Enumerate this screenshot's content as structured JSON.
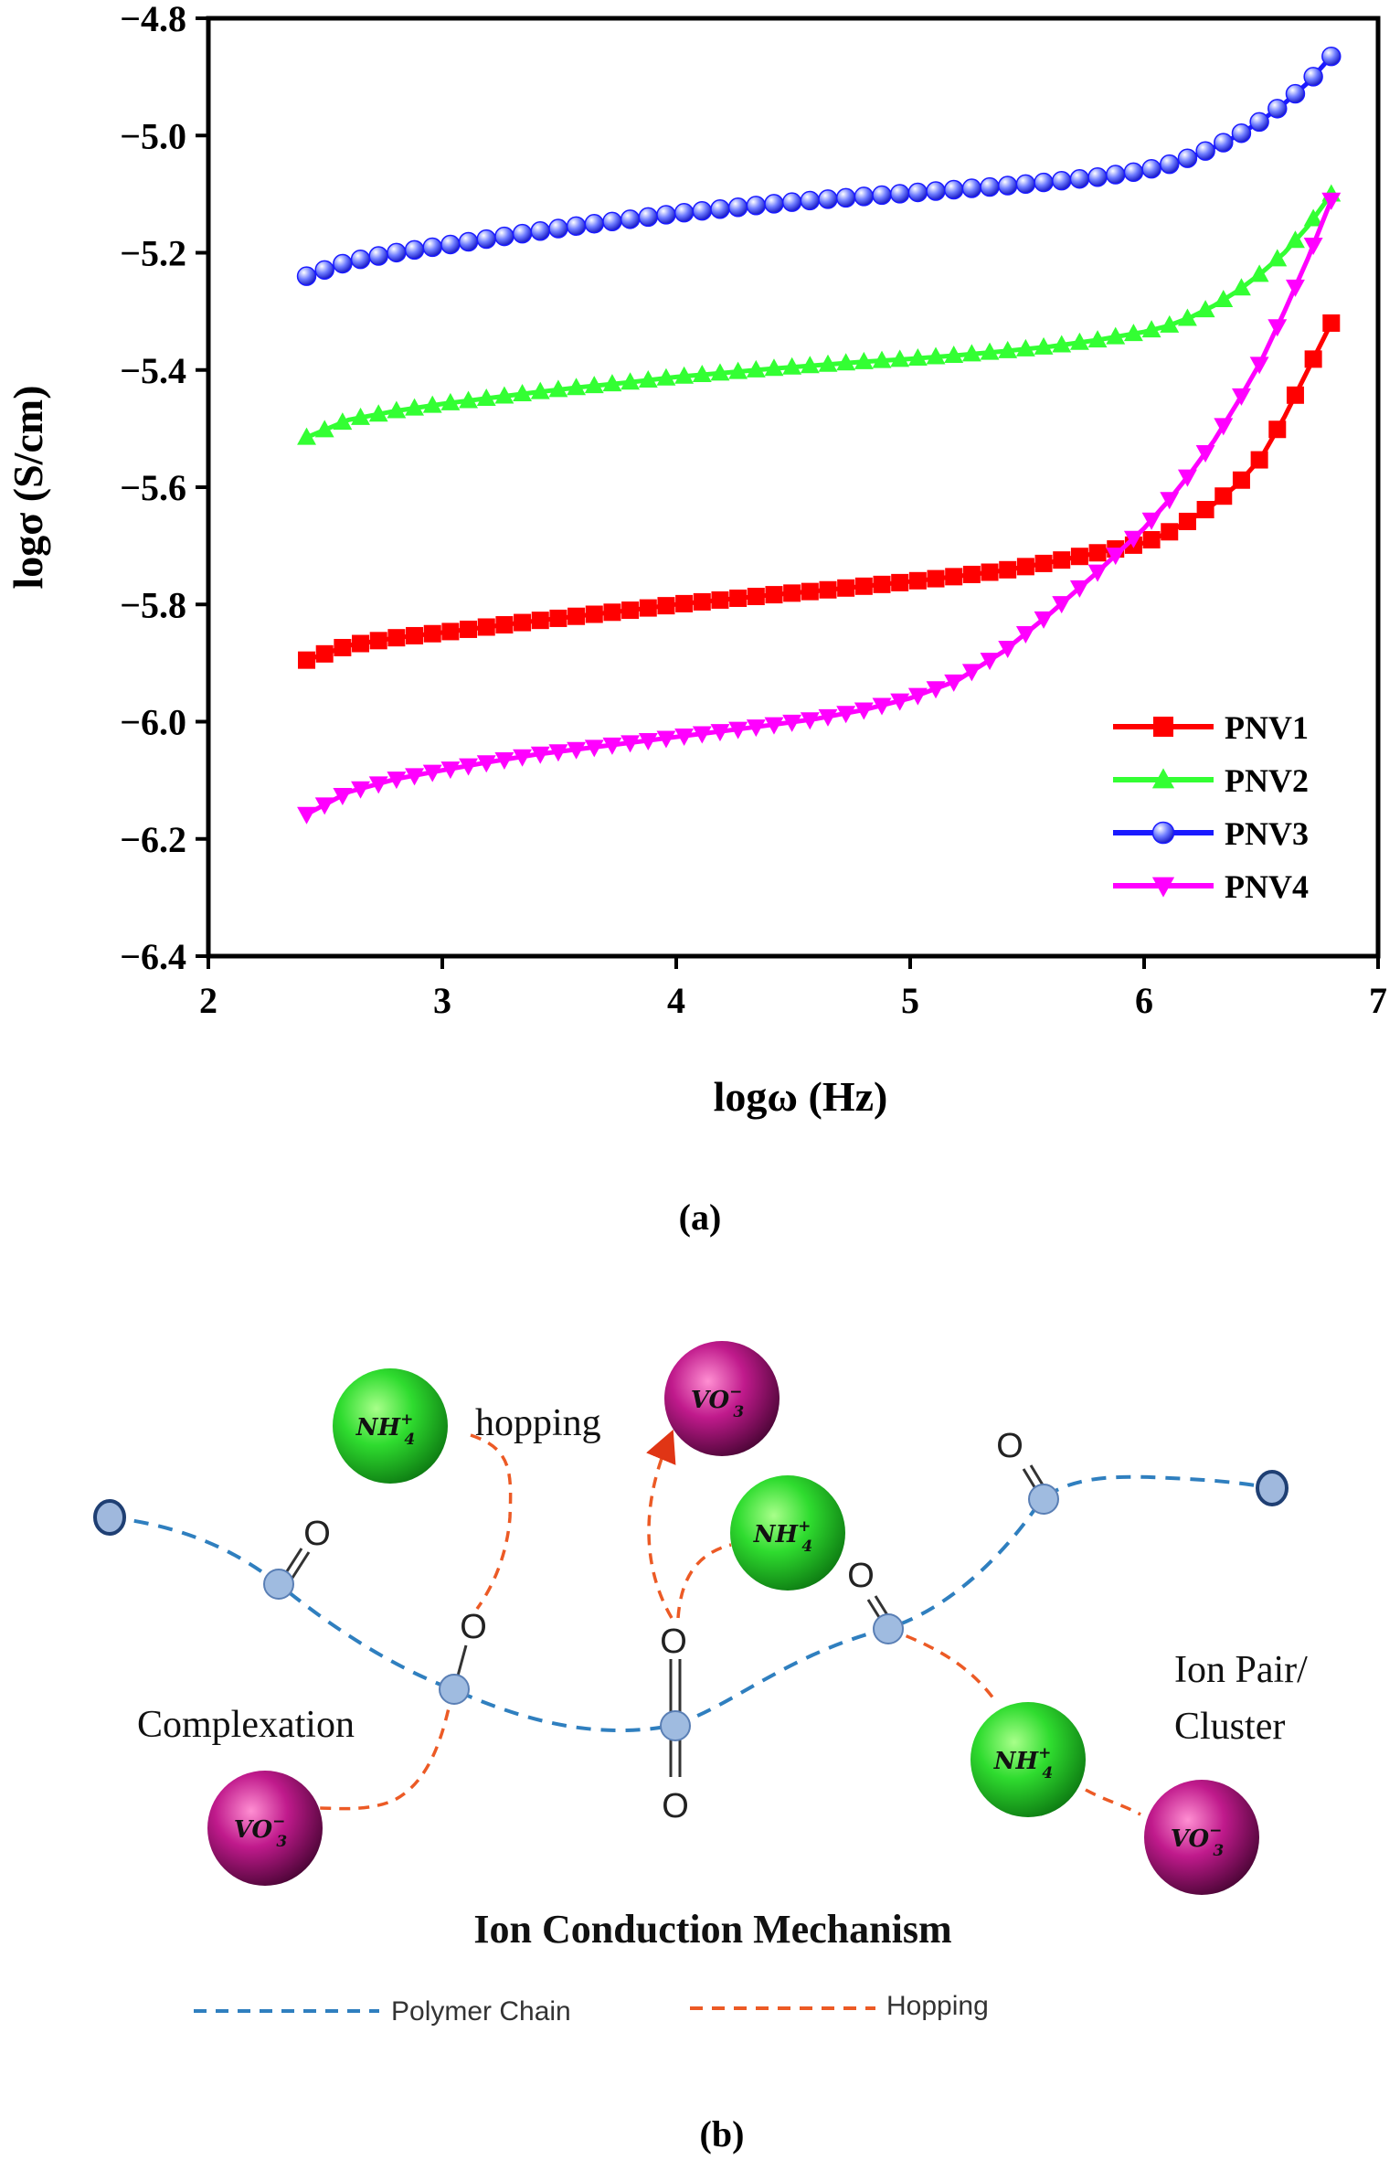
{
  "chart_data": {
    "type": "line",
    "title": "",
    "xlabel": "logω (Hz)",
    "ylabel": "logσ (S/cm)",
    "xlim": [
      2,
      7
    ],
    "ylim": [
      -6.4,
      -4.8
    ],
    "xticks": [
      "2",
      "3",
      "4",
      "5",
      "6",
      "7"
    ],
    "yticks": [
      "-4.8",
      "-5.0",
      "-5.2",
      "-5.4",
      "-5.6",
      "-5.8",
      "-6.0",
      "-6.2",
      "-6.4"
    ],
    "legend_position": "bottom-right",
    "series": [
      {
        "name": "PNV1",
        "color": "#ff0000",
        "marker": "square",
        "x": [
          2.42,
          2.6,
          2.8,
          3.0,
          3.2,
          3.4,
          3.6,
          3.8,
          4.0,
          4.2,
          4.4,
          4.6,
          4.8,
          5.0,
          5.2,
          5.4,
          5.6,
          5.8,
          6.0,
          6.1,
          6.2,
          6.3,
          6.4,
          6.5,
          6.6,
          6.7,
          6.8
        ],
        "values": [
          -5.895,
          -5.87,
          -5.857,
          -5.848,
          -5.838,
          -5.828,
          -5.819,
          -5.81,
          -5.8,
          -5.792,
          -5.784,
          -5.777,
          -5.769,
          -5.761,
          -5.752,
          -5.742,
          -5.728,
          -5.712,
          -5.695,
          -5.678,
          -5.655,
          -5.628,
          -5.595,
          -5.55,
          -5.48,
          -5.4,
          -5.32
        ]
      },
      {
        "name": "PNV2",
        "color": "#33ff33",
        "marker": "triangle-up",
        "x": [
          2.42,
          2.6,
          2.8,
          3.0,
          3.2,
          3.4,
          3.6,
          3.8,
          4.0,
          4.2,
          4.4,
          4.6,
          4.8,
          5.0,
          5.2,
          5.4,
          5.6,
          5.8,
          6.0,
          6.1,
          6.2,
          6.3,
          6.4,
          6.5,
          6.6,
          6.7,
          6.8
        ],
        "values": [
          -5.515,
          -5.485,
          -5.47,
          -5.458,
          -5.448,
          -5.438,
          -5.429,
          -5.421,
          -5.412,
          -5.405,
          -5.398,
          -5.392,
          -5.386,
          -5.381,
          -5.375,
          -5.368,
          -5.36,
          -5.349,
          -5.335,
          -5.325,
          -5.31,
          -5.29,
          -5.265,
          -5.235,
          -5.2,
          -5.155,
          -5.1
        ]
      },
      {
        "name": "PNV3",
        "color": "#1a1aff",
        "marker": "circle",
        "x": [
          2.42,
          2.6,
          2.8,
          3.0,
          3.2,
          3.4,
          3.6,
          3.8,
          4.0,
          4.2,
          4.4,
          4.6,
          4.8,
          5.0,
          5.2,
          5.4,
          5.6,
          5.8,
          6.0,
          6.1,
          6.2,
          6.3,
          6.4,
          6.5,
          6.6,
          6.7,
          6.8
        ],
        "values": [
          -5.24,
          -5.215,
          -5.2,
          -5.188,
          -5.176,
          -5.164,
          -5.153,
          -5.143,
          -5.133,
          -5.125,
          -5.117,
          -5.11,
          -5.104,
          -5.098,
          -5.092,
          -5.086,
          -5.079,
          -5.071,
          -5.06,
          -5.05,
          -5.037,
          -5.02,
          -5.0,
          -4.975,
          -4.945,
          -4.91,
          -4.865
        ]
      },
      {
        "name": "PNV4",
        "color": "#ff00ff",
        "marker": "triangle-down",
        "x": [
          2.42,
          2.6,
          2.8,
          3.0,
          3.2,
          3.4,
          3.6,
          3.8,
          4.0,
          4.2,
          4.4,
          4.6,
          4.8,
          5.0,
          5.2,
          5.4,
          5.6,
          5.8,
          6.0,
          6.1,
          6.2,
          6.3,
          6.4,
          6.5,
          6.6,
          6.7,
          6.8
        ],
        "values": [
          -6.158,
          -6.12,
          -6.098,
          -6.083,
          -6.069,
          -6.056,
          -6.046,
          -6.036,
          -6.026,
          -6.016,
          -6.006,
          -5.995,
          -5.98,
          -5.96,
          -5.93,
          -5.88,
          -5.815,
          -5.745,
          -5.67,
          -5.625,
          -5.575,
          -5.52,
          -5.455,
          -5.385,
          -5.3,
          -5.21,
          -5.11
        ]
      }
    ]
  },
  "panel_a_label": "(a)",
  "diagram": {
    "title": "Ion Conduction Mechanism",
    "labels": {
      "hopping": "hopping",
      "complexation": "Complexation",
      "ion_pair_line1": "Ion Pair/",
      "ion_pair_line2": "Cluster"
    },
    "oxygen": "O",
    "ions": {
      "nh4": {
        "base": "NH",
        "sub": "4",
        "sup": "+",
        "color": "#22cc22"
      },
      "vo3": {
        "base": "VO",
        "sub": "3",
        "sup": "−",
        "color": "#b0157e"
      }
    },
    "legend": {
      "polymer_chain": "Polymer Chain",
      "hopping": "Hopping"
    },
    "colors": {
      "polymer_chain": "#2f7fbf",
      "hopping": "#ec5a25"
    }
  },
  "panel_b_label": "(b)"
}
